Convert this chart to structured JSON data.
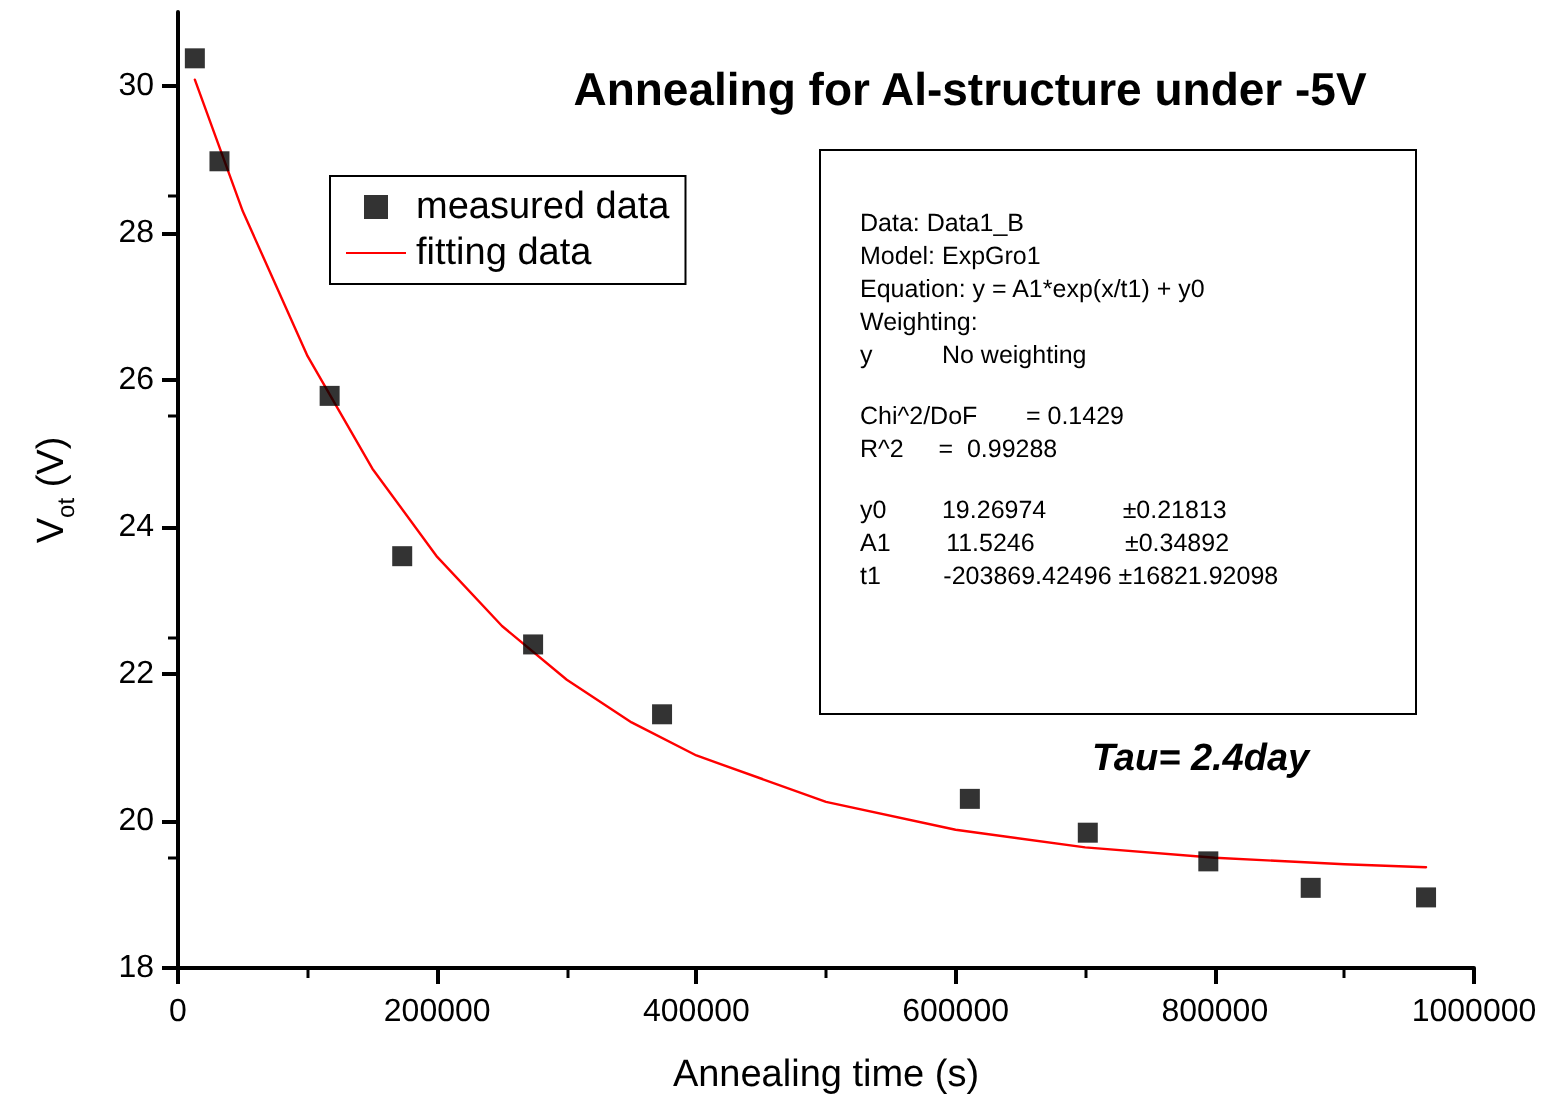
{
  "chart_data": {
    "type": "scatter",
    "title": "Annealing for Al-structure under -5V",
    "xlabel": "Annealing time (s)",
    "ylabel": "V$_{ot}$ (V)",
    "xlim": [
      0,
      1000000
    ],
    "xticks": [
      0,
      200000,
      400000,
      600000,
      800000,
      1000000
    ],
    "ylim": [
      18,
      31
    ],
    "yticks": [
      18,
      20,
      22,
      24,
      26,
      28,
      30
    ],
    "grid": false,
    "legend": "top left",
    "marker": "square",
    "series": [
      {
        "name": "measured data",
        "color": "#000000",
        "x": [
          13000,
          32000,
          117000,
          173000,
          274000,
          373500,
          611000,
          702000,
          795000,
          874000,
          963000
        ],
        "values": [
          30.37,
          28.97,
          25.78,
          23.6,
          22.4,
          21.45,
          20.3,
          19.84,
          19.45,
          19.09,
          18.96
        ]
      },
      {
        "name": "fitting data",
        "type": "line",
        "color": "#ff0000",
        "marker": "none",
        "line_style": "solid",
        "x": [
          13000,
          50000,
          100000,
          150000,
          200000,
          250000,
          300000,
          350000,
          400000,
          500000,
          600000,
          700000,
          800000,
          900000,
          963000
        ],
        "values": [
          30.08,
          28.29,
          26.32,
          24.79,
          23.59,
          22.65,
          21.92,
          21.34,
          20.89,
          20.26,
          19.88,
          19.64,
          19.5,
          19.41,
          19.37
        ]
      }
    ],
    "annotations": [
      "Data: Data1_B",
      "Model: ExpGro1",
      "Equation: y = A1*exp(x/t1) + y0",
      "Weighting:",
      "y          No weighting",
      "Chi^2/DoF       = 0.1429",
      "R^2     =  0.99288",
      "y0        19.26974           ±0.21813",
      "A1        11.5246             ±0.34892",
      "t1         -203869.42496 ±16821.92098",
      "Tau= 2.4day"
    ]
  }
}
